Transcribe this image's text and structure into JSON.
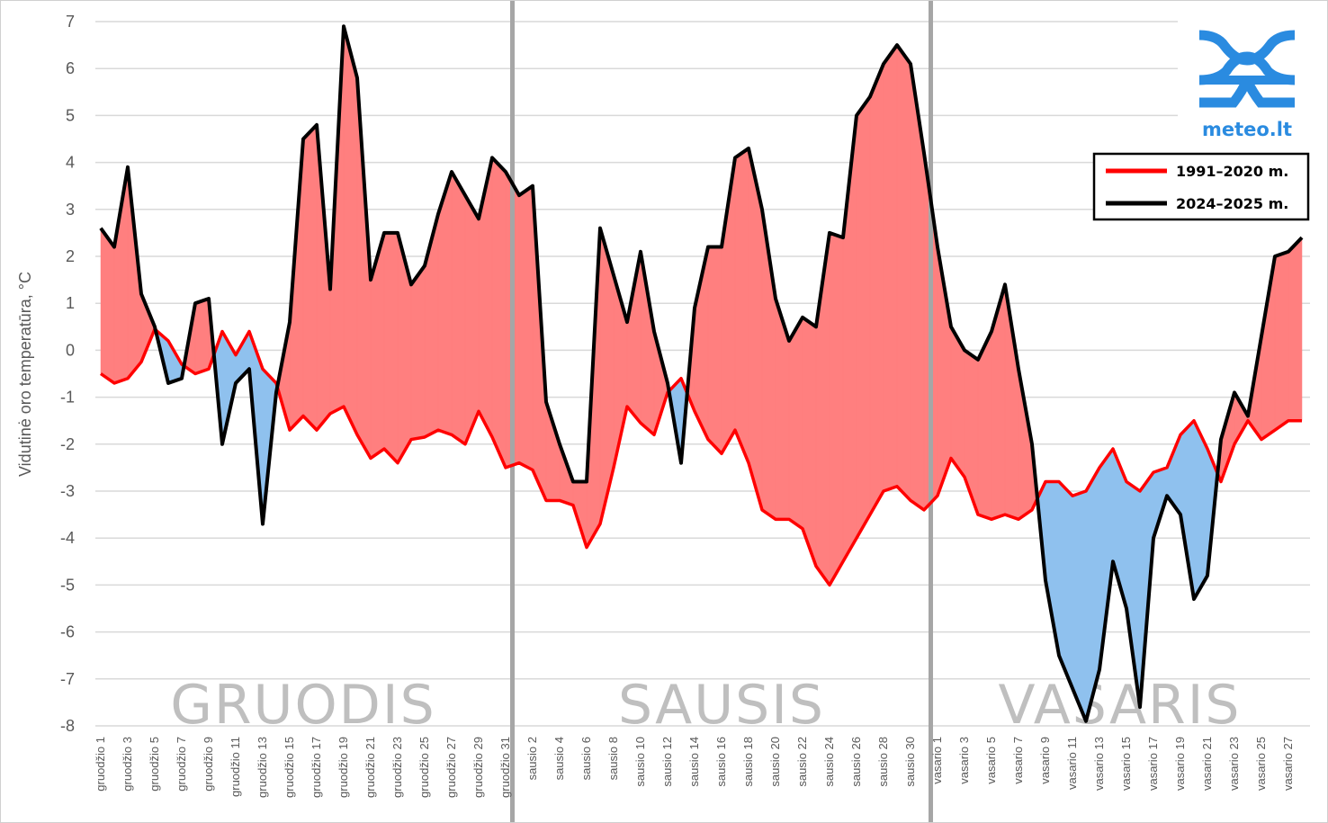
{
  "chart_data": {
    "type": "line",
    "title": "",
    "ylabel": "Vidutinė oro temperatūra, °C",
    "xlabel": "",
    "ylim": [
      -8,
      7
    ],
    "yticks": [
      "7",
      "6",
      "5",
      "4",
      "3",
      "2",
      "1",
      "0",
      "-1",
      "-2",
      "-3",
      "-4",
      "-5",
      "-6",
      "-7",
      "-8"
    ],
    "grid": true,
    "legend_position": "top-right",
    "months": [
      {
        "label": "GRUODIS",
        "start_index": 0,
        "days": 31
      },
      {
        "label": "SAUSIS",
        "start_index": 31,
        "days": 31
      },
      {
        "label": "VASARIS",
        "start_index": 62,
        "days": 28
      }
    ],
    "tick_labels": [
      "gruodžio 1",
      "gruodžio 3",
      "gruodžio 5",
      "gruodžio 7",
      "gruodžio 9",
      "gruodžio 11",
      "gruodžio 13",
      "gruodžio 15",
      "gruodžio 17",
      "gruodžio 19",
      "gruodžio 21",
      "gruodžio 23",
      "gruodžio 25",
      "gruodžio 27",
      "gruodžio 29",
      "gruodžio 31",
      "sausio 2",
      "sausio 4",
      "sausio 6",
      "sausio 8",
      "sausio 10",
      "sausio 12",
      "sausio 14",
      "sausio 16",
      "sausio 18",
      "sausio 20",
      "sausio 22",
      "sausio 24",
      "sausio 26",
      "sausio 28",
      "sausio 30",
      "vasario 1",
      "vasario 3",
      "vasario 5",
      "vasario 7",
      "vasario 9",
      "vasario 11",
      "vasario 13",
      "vasario 15",
      "vasario 17",
      "vasario 19",
      "vasario 21",
      "vasario 23",
      "vasario 25",
      "vasario 27"
    ],
    "series": [
      {
        "name": "1991–2020 m.",
        "color": "#ff0000",
        "values": [
          -0.5,
          -0.7,
          -0.6,
          -0.25,
          0.45,
          0.2,
          -0.3,
          -0.5,
          -0.4,
          0.4,
          -0.1,
          0.4,
          -0.4,
          -0.7,
          -1.7,
          -1.4,
          -1.7,
          -1.35,
          -1.2,
          -1.8,
          -2.3,
          -2.1,
          -2.4,
          -1.9,
          -1.85,
          -1.7,
          -1.8,
          -2.0,
          -1.3,
          -1.85,
          -2.5,
          -2.4,
          -2.55,
          -3.2,
          -3.2,
          -3.3,
          -4.2,
          -3.7,
          -2.5,
          -1.2,
          -1.55,
          -1.8,
          -0.9,
          -0.6,
          -1.3,
          -1.9,
          -2.2,
          -1.7,
          -2.4,
          -3.4,
          -3.6,
          -3.6,
          -3.8,
          -4.6,
          -5.0,
          -4.5,
          -4.0,
          -3.5,
          -3.0,
          -2.9,
          -3.2,
          -3.4,
          -3.1,
          -2.3,
          -2.7,
          -3.5,
          -3.6,
          -3.5,
          -3.6,
          -3.4,
          -2.8,
          -2.8,
          -3.1,
          -3.0,
          -2.5,
          -2.1,
          -2.8,
          -3.0,
          -2.6,
          -2.5,
          -1.8,
          -1.5,
          -2.1,
          -2.8,
          -2.0,
          -1.5,
          -1.9,
          -1.7,
          -1.5,
          -1.5
        ]
      },
      {
        "name": "2024–2025 m.",
        "color": "#000000",
        "values": [
          2.6,
          2.2,
          3.9,
          1.2,
          0.5,
          -0.7,
          -0.6,
          1.0,
          1.1,
          -2.0,
          -0.7,
          -0.4,
          -3.7,
          -0.9,
          0.6,
          4.5,
          4.8,
          1.3,
          6.9,
          5.8,
          1.5,
          2.5,
          2.5,
          1.4,
          1.8,
          2.9,
          3.8,
          3.3,
          2.8,
          4.1,
          3.8,
          3.3,
          3.5,
          -1.1,
          -2.0,
          -2.8,
          -2.8,
          2.6,
          1.6,
          0.6,
          2.1,
          0.4,
          -0.7,
          -2.4,
          0.9,
          2.2,
          2.2,
          4.1,
          4.3,
          3.0,
          1.1,
          0.2,
          0.7,
          0.5,
          2.5,
          2.4,
          5.0,
          5.4,
          6.1,
          6.5,
          6.1,
          4.2,
          2.2,
          0.5,
          0.0,
          -0.2,
          0.4,
          1.4,
          -0.4,
          -2.0,
          -4.9,
          -6.5,
          -7.2,
          -7.9,
          -6.8,
          -4.5,
          -5.5,
          -7.6,
          -4.0,
          -3.1,
          -3.5,
          -5.3,
          -4.8,
          -1.9,
          -0.9,
          -1.4,
          0.3,
          2.0,
          2.1,
          2.4
        ]
      }
    ],
    "fill_colors": {
      "above": "#ff7f7f",
      "below": "#8fc1ee"
    }
  },
  "logo": {
    "text": "meteo.lt",
    "color": "#2a8be0"
  },
  "legend": {
    "items": [
      {
        "label": "1991–2020 m.",
        "color": "#ff0000"
      },
      {
        "label": "2024–2025 m.",
        "color": "#000000"
      }
    ]
  }
}
